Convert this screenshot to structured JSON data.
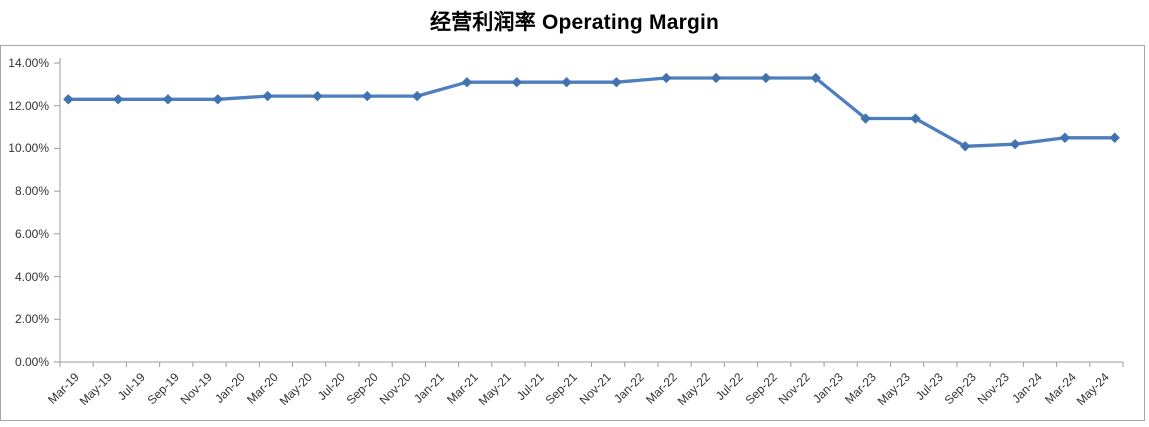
{
  "chart_data": {
    "type": "line",
    "title": "经营利润率 Operating Margin",
    "xlabel": "",
    "ylabel": "",
    "ylim": [
      0,
      14
    ],
    "grid": false,
    "legend": "none",
    "marker": "diamond",
    "y_tick_labels": [
      "0.00%",
      "2.00%",
      "4.00%",
      "6.00%",
      "8.00%",
      "10.00%",
      "12.00%",
      "14.00%"
    ],
    "x_tick_labels": [
      "Mar-19",
      "May-19",
      "Jul-19",
      "Sep-19",
      "Nov-19",
      "Jan-20",
      "Mar-20",
      "May-20",
      "Jul-20",
      "Sep-20",
      "Nov-20",
      "Jan-21",
      "Mar-21",
      "May-21",
      "Jul-21",
      "Sep-21",
      "Nov-21",
      "Jan-22",
      "Mar-22",
      "May-22",
      "Jul-22",
      "Sep-22",
      "Nov-22",
      "Jan-23",
      "Mar-23",
      "May-23",
      "Jul-23",
      "Sep-23",
      "Nov-23",
      "Jan-24",
      "Mar-24",
      "May-24"
    ],
    "series": [
      {
        "name": "Operating Margin",
        "x": [
          "Mar-19",
          "Jun-19",
          "Sep-19",
          "Dec-19",
          "Mar-20",
          "Jun-20",
          "Sep-20",
          "Dec-20",
          "Mar-21",
          "Jun-21",
          "Sep-21",
          "Dec-21",
          "Mar-22",
          "Jun-22",
          "Sep-22",
          "Dec-22",
          "Mar-23",
          "Jun-23",
          "Sep-23",
          "Dec-23",
          "Mar-24",
          "Jun-24"
        ],
        "values": [
          12.3,
          12.3,
          12.3,
          12.3,
          12.45,
          12.45,
          12.45,
          12.45,
          13.1,
          13.1,
          13.1,
          13.1,
          13.3,
          13.3,
          13.3,
          13.3,
          11.4,
          11.4,
          10.1,
          10.2,
          10.5,
          10.5
        ]
      }
    ],
    "colors": {
      "line": "#4d7ebd",
      "marker": "#4173af",
      "axis": "#9b9b9b",
      "tick_label": "#333333",
      "title": "#000000",
      "chart_border": "#a6a6a6",
      "background": "#ffffff"
    }
  }
}
